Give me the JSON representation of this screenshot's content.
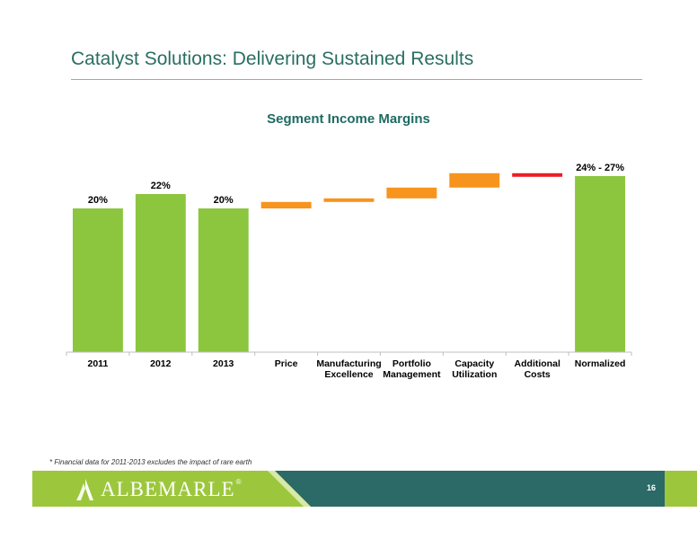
{
  "slide": {
    "title": "Catalyst Solutions: Delivering Sustained Results",
    "footnote": "* Financial data for 2011-2013 excludes the impact of rare earth",
    "page_number": "16",
    "logo_text": "ALBEMARLE",
    "logo_mark": "®"
  },
  "colors": {
    "title": "#2a6e62",
    "actual_bar": "#8cc63f",
    "increment_bar": "#f7941d",
    "decrement_bar": "#ed1c24",
    "footer_green": "#9cc73c",
    "footer_teal": "#2b6a66"
  },
  "chart_data": {
    "type": "bar",
    "subtype": "waterfall",
    "title": "Segment Income Margins",
    "xlabel": "",
    "ylabel": "",
    "unit": "%",
    "ylim": [
      0,
      27
    ],
    "grid": false,
    "legend": "none",
    "categories": [
      [
        "2011"
      ],
      [
        "2012"
      ],
      [
        "2013"
      ],
      [
        "Price"
      ],
      [
        "Manufacturing",
        "Excellence"
      ],
      [
        "Portfolio",
        "Management"
      ],
      [
        "Capacity",
        "Utilization"
      ],
      [
        "Additional",
        "Costs"
      ],
      [
        "Normalized"
      ]
    ],
    "bars": [
      {
        "kind": "total",
        "base": 0,
        "top": 20,
        "label": "20%"
      },
      {
        "kind": "total",
        "base": 0,
        "top": 22,
        "label": "22%"
      },
      {
        "kind": "total",
        "base": 0,
        "top": 20,
        "label": "20%"
      },
      {
        "kind": "increase",
        "base": 20,
        "top": 20.9,
        "label": ""
      },
      {
        "kind": "increase",
        "base": 20.9,
        "top": 21.4,
        "label": ""
      },
      {
        "kind": "increase",
        "base": 21.4,
        "top": 22.9,
        "label": ""
      },
      {
        "kind": "increase",
        "base": 22.9,
        "top": 24.9,
        "label": ""
      },
      {
        "kind": "decrease",
        "base": 24.9,
        "top": 24.4,
        "label": ""
      },
      {
        "kind": "total",
        "base": 0,
        "top": 24.5,
        "label": "24% - 27%"
      }
    ]
  }
}
